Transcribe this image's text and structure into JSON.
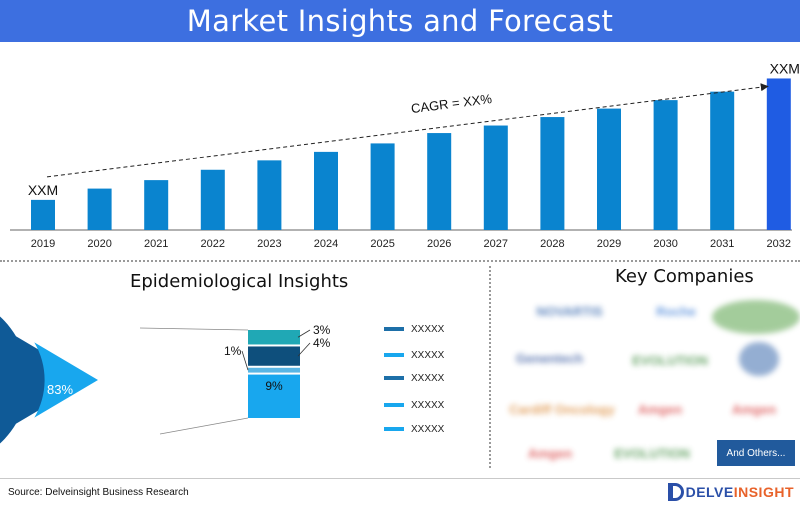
{
  "header": {
    "title": "Market Insights and Forecast"
  },
  "chart_data": [
    {
      "type": "bar",
      "categories": [
        "2019",
        "2020",
        "2021",
        "2022",
        "2023",
        "2024",
        "2025",
        "2026",
        "2027",
        "2028",
        "2029",
        "2030",
        "2031",
        "2032"
      ],
      "values": [
        32,
        44,
        53,
        64,
        74,
        83,
        92,
        103,
        111,
        120,
        129,
        138,
        147,
        161
      ],
      "value_labels": {
        "first": "XXM",
        "last": "XXM"
      },
      "annotation": "CAGR = XX%",
      "ylim": [
        0,
        170
      ],
      "colors": {
        "bar": "#0a84cf",
        "last_bar": "#1f5ce3"
      },
      "grid": false
    },
    {
      "type": "pie",
      "title": "Epidemiological Insights",
      "slices": [
        {
          "label": "83%",
          "value": 83,
          "color": "#0f5a97"
        },
        {
          "label": "",
          "value": 17,
          "color": "#18a7ee"
        }
      ],
      "breakdown": [
        {
          "label": "3%",
          "value": 3,
          "color": "#20a8b5"
        },
        {
          "label": "4%",
          "value": 4,
          "color": "#0e4f7c"
        },
        {
          "label": "1%",
          "value": 1,
          "color": "#5ab6e4"
        },
        {
          "label": "9%",
          "value": 9,
          "color": "#18a7ee"
        }
      ]
    }
  ],
  "legend": {
    "items": [
      {
        "label": "XXXXX",
        "color": "#1d6fa8"
      },
      {
        "label": "XXXXX",
        "color": "#18a7ee"
      },
      {
        "label": "XXXXX",
        "color": "#1d6fa8"
      },
      {
        "label": "XXXXX",
        "color": "#18a7ee"
      },
      {
        "label": "XXXXX",
        "color": "#18a7ee"
      }
    ]
  },
  "key_companies": {
    "title": "Key Companies",
    "logos": [
      {
        "name": "NOVARTIS",
        "color": "#2a5ea8"
      },
      {
        "name": "Roche",
        "color": "#3a7bd5"
      },
      {
        "name": "",
        "color": "#4a9a3a"
      },
      {
        "name": "Genentech",
        "color": "#2c4f99"
      },
      {
        "name": "EVOLUTION",
        "color": "#3b8a3b"
      },
      {
        "name": "",
        "color": "#2c5fa6"
      },
      {
        "name": "Cardiff Oncology",
        "color": "#d9822b"
      },
      {
        "name": "Amgen",
        "color": "#d63a3a"
      },
      {
        "name": "Amgen",
        "color": "#d63a3a"
      },
      {
        "name": "Amgen",
        "color": "#d63a3a"
      },
      {
        "name": "EVOLUTION",
        "color": "#3b8a3b"
      }
    ],
    "and_others": "And Others..."
  },
  "footer": {
    "source": "Source: Delveinsight Business Research",
    "brand_prefix": "DELVE",
    "brand_suffix": "INSIGHT"
  }
}
